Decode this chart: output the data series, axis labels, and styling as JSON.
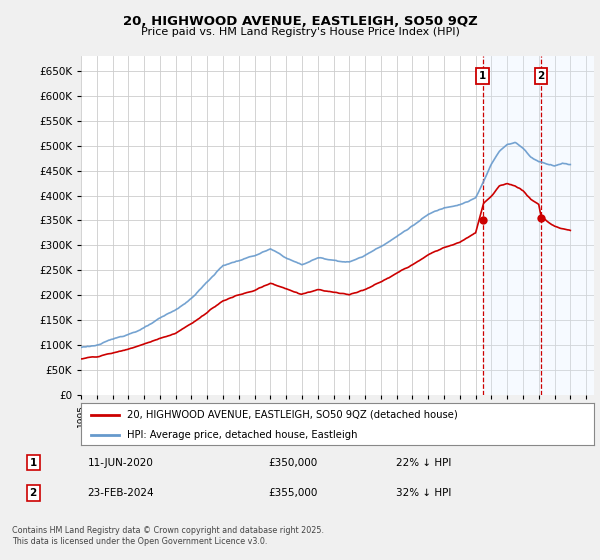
{
  "title": "20, HIGHWOOD AVENUE, EASTLEIGH, SO50 9QZ",
  "subtitle": "Price paid vs. HM Land Registry's House Price Index (HPI)",
  "ylim": [
    0,
    680000
  ],
  "yticks": [
    0,
    50000,
    100000,
    150000,
    200000,
    250000,
    300000,
    350000,
    400000,
    450000,
    500000,
    550000,
    600000,
    650000
  ],
  "xlim_start": 1995.0,
  "xlim_end": 2027.5,
  "fig_bg": "#f0f0f0",
  "plot_bg": "#ffffff",
  "grid_color": "#cccccc",
  "hpi_color": "#6699cc",
  "price_color": "#cc0000",
  "shade_color": "#ddeeff",
  "transaction1_x": 2020.44,
  "transaction1_y": 350000,
  "transaction2_x": 2024.14,
  "transaction2_y": 355000,
  "legend_house": "20, HIGHWOOD AVENUE, EASTLEIGH, SO50 9QZ (detached house)",
  "legend_hpi": "HPI: Average price, detached house, Eastleigh",
  "note1_date": "11-JUN-2020",
  "note1_price": "£350,000",
  "note1_hpi": "22% ↓ HPI",
  "note2_date": "23-FEB-2024",
  "note2_price": "£355,000",
  "note2_hpi": "32% ↓ HPI",
  "copyright": "Contains HM Land Registry data © Crown copyright and database right 2025.\nThis data is licensed under the Open Government Licence v3.0."
}
